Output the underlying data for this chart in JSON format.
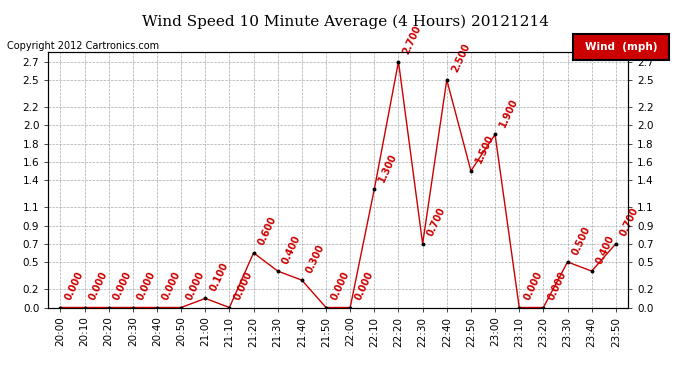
{
  "title": "Wind Speed 10 Minute Average (4 Hours) 20121214",
  "copyright": "Copyright 2012 Cartronics.com",
  "legend_label": "Wind  (mph)",
  "legend_bg": "#cc0000",
  "legend_fg": "#ffffff",
  "x_labels": [
    "20:00",
    "20:10",
    "20:20",
    "20:30",
    "20:40",
    "20:50",
    "21:00",
    "21:10",
    "21:20",
    "21:30",
    "21:40",
    "21:50",
    "22:00",
    "22:10",
    "22:20",
    "22:30",
    "22:40",
    "22:50",
    "23:00",
    "23:10",
    "23:20",
    "23:30",
    "23:40",
    "23:50"
  ],
  "y_values": [
    0.0,
    0.0,
    0.0,
    0.0,
    0.0,
    0.0,
    0.1,
    0.0,
    0.6,
    0.4,
    0.3,
    0.0,
    0.0,
    1.3,
    2.7,
    0.7,
    2.5,
    1.5,
    1.9,
    0.0,
    0.0,
    0.5,
    0.4,
    0.7
  ],
  "ylim": [
    0.0,
    2.8
  ],
  "yticks": [
    0.0,
    0.2,
    0.5,
    0.7,
    0.9,
    1.1,
    1.4,
    1.6,
    1.8,
    2.0,
    2.2,
    2.5,
    2.7
  ],
  "line_color": "#cc0000",
  "marker_color": "#000000",
  "bg_color": "#ffffff",
  "grid_color": "#aaaaaa",
  "title_fontsize": 11,
  "tick_fontsize": 7.5,
  "annotation_fontsize": 7,
  "annotation_color": "#cc0000",
  "copyright_fontsize": 7
}
